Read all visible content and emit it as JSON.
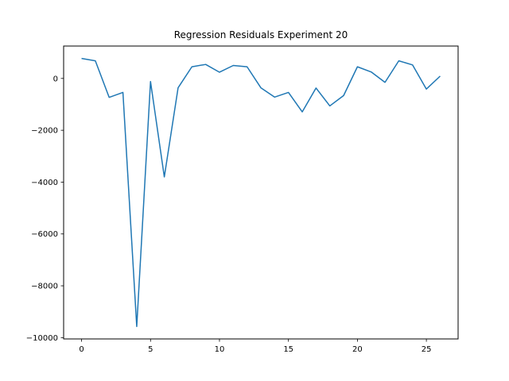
{
  "chart_data": {
    "type": "line",
    "title": "Regression Residuals Experiment 20",
    "xlabel": "",
    "ylabel": "",
    "xlim": [
      -1.3,
      27.3
    ],
    "ylim": [
      -10050,
      1250
    ],
    "x_ticks": [
      0,
      5,
      10,
      15,
      20,
      25
    ],
    "y_ticks": [
      0,
      -2000,
      -4000,
      -6000,
      -8000,
      -10000
    ],
    "x_tick_labels": [
      "0",
      "5",
      "10",
      "15",
      "20",
      "25"
    ],
    "y_tick_labels": [
      "0",
      "−2000",
      "−4000",
      "−6000",
      "−8000",
      "−10000"
    ],
    "grid": false,
    "legend": "none",
    "series": [
      {
        "color": "#1f77b4",
        "x": [
          0,
          1,
          2,
          3,
          4,
          5,
          6,
          7,
          8,
          9,
          10,
          11,
          12,
          13,
          14,
          15,
          16,
          17,
          18,
          19,
          20,
          21,
          22,
          23,
          24,
          25,
          26
        ],
        "values": [
          770,
          680,
          -730,
          -540,
          -9570,
          -120,
          -3800,
          -360,
          450,
          540,
          240,
          500,
          450,
          -360,
          -720,
          -540,
          -1290,
          -370,
          -1060,
          -660,
          450,
          250,
          -150,
          680,
          520,
          -410,
          90
        ]
      }
    ]
  }
}
